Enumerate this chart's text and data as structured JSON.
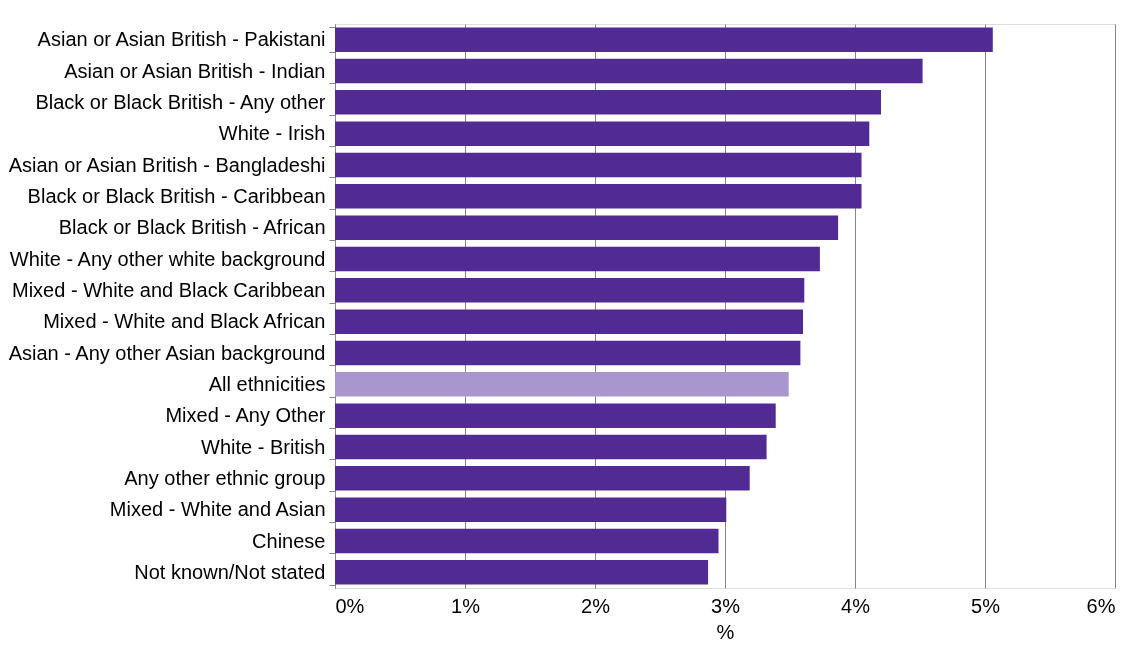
{
  "chart_data": {
    "type": "bar",
    "orientation": "horizontal",
    "xlabel": "%",
    "categories": [
      "Asian or Asian British - Pakistani",
      "Asian or Asian British - Indian",
      "Black or Black British - Any other",
      "White - Irish",
      "Asian or Asian British - Bangladeshi",
      "Black or Black British - Caribbean",
      "Black or Black British - African",
      "White - Any other white background",
      "Mixed - White and Black Caribbean",
      "Mixed - White and Black African",
      "Asian - Any other Asian background",
      "All ethnicities",
      "Mixed - Any Other",
      "White - British",
      "Any other ethnic group",
      "Mixed - White and Asian",
      "Chinese",
      "Not known/Not stated"
    ],
    "values": [
      5.06,
      4.52,
      4.2,
      4.11,
      4.05,
      4.05,
      3.87,
      3.73,
      3.61,
      3.6,
      3.58,
      3.49,
      3.39,
      3.32,
      3.19,
      3.01,
      2.95,
      2.87
    ],
    "colors": [
      "#522a94",
      "#522a94",
      "#522a94",
      "#522a94",
      "#522a94",
      "#522a94",
      "#522a94",
      "#522a94",
      "#522a94",
      "#522a94",
      "#522a94",
      "#a996cf",
      "#522a94",
      "#522a94",
      "#522a94",
      "#522a94",
      "#522a94",
      "#522a94"
    ],
    "xlim": [
      0,
      6
    ],
    "xticks": [
      {
        "value": 0,
        "label": "0%"
      },
      {
        "value": 1,
        "label": "1%"
      },
      {
        "value": 2,
        "label": "2%"
      },
      {
        "value": 3,
        "label": "3%"
      },
      {
        "value": 4,
        "label": "4%"
      },
      {
        "value": 5,
        "label": "5%"
      },
      {
        "value": 6,
        "label": "6%"
      }
    ],
    "grid": "x",
    "legend": false
  }
}
